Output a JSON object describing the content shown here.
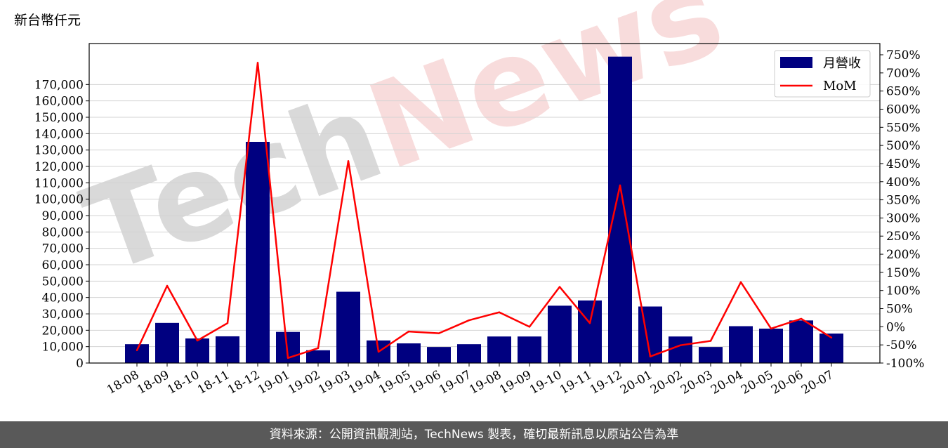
{
  "unit_label": "新台幣仟元",
  "footer": "資料來源：公開資訊觀測站，TechNews 製表，確切最新訊息以原站公告為準",
  "watermark": {
    "text": "TechNews"
  },
  "colors": {
    "bar": "#000080",
    "line": "#ff0000",
    "grid": "#d3d3d3",
    "watermark_dark": "#d9d9d9",
    "watermark_red": "#f8dcdc"
  },
  "chart_data": {
    "type": "bar",
    "categories": [
      "18-08",
      "18-09",
      "18-10",
      "18-11",
      "18-12",
      "19-01",
      "19-02",
      "19-03",
      "19-04",
      "19-05",
      "19-06",
      "19-07",
      "19-08",
      "19-09",
      "19-10",
      "19-11",
      "19-12",
      "20-01",
      "20-02",
      "20-03",
      "20-04",
      "20-05",
      "20-06",
      "20-07"
    ],
    "series": [
      {
        "name": "月營收",
        "type": "bar",
        "axis": "left",
        "values": [
          11500,
          24500,
          15000,
          16300,
          135000,
          19000,
          7800,
          43500,
          13800,
          12000,
          9800,
          11500,
          16200,
          16200,
          35000,
          38200,
          187000,
          34500,
          16200,
          9800,
          22500,
          21000,
          26000,
          18000
        ]
      },
      {
        "name": "MoM",
        "type": "line",
        "axis": "right",
        "unit": "%",
        "values": [
          -65,
          113,
          -38,
          10,
          728,
          -86,
          -59,
          457,
          -69,
          -13,
          -18,
          18,
          40,
          0,
          110,
          10,
          390,
          -82,
          -51,
          -39,
          123,
          -5,
          22,
          -30
        ]
      }
    ],
    "y_left": {
      "ticks": [
        0,
        10000,
        20000,
        30000,
        40000,
        50000,
        60000,
        70000,
        80000,
        90000,
        100000,
        110000,
        120000,
        130000,
        140000,
        150000,
        160000,
        170000
      ],
      "tick_labels": [
        "0",
        "10,000",
        "20,000",
        "30,000",
        "40,000",
        "50,000",
        "60,000",
        "70,000",
        "80,000",
        "90,000",
        "100,000",
        "110,000",
        "120,000",
        "130,000",
        "140,000",
        "150,000",
        "160,000",
        "170,000"
      ],
      "range": [
        0,
        195000
      ]
    },
    "y_right": {
      "ticks": [
        -100,
        -50,
        0,
        50,
        100,
        150,
        200,
        250,
        300,
        350,
        400,
        450,
        500,
        550,
        600,
        650,
        700,
        750
      ],
      "tick_labels": [
        "-100%",
        "-50%",
        "0%",
        "50%",
        "100%",
        "150%",
        "200%",
        "250%",
        "300%",
        "350%",
        "400%",
        "450%",
        "500%",
        "550%",
        "600%",
        "650%",
        "700%",
        "750%"
      ],
      "range": [
        -100,
        781
      ]
    },
    "grid": true,
    "legend": {
      "placement": "top-right",
      "entries": [
        "月營收",
        "MoM"
      ]
    }
  }
}
